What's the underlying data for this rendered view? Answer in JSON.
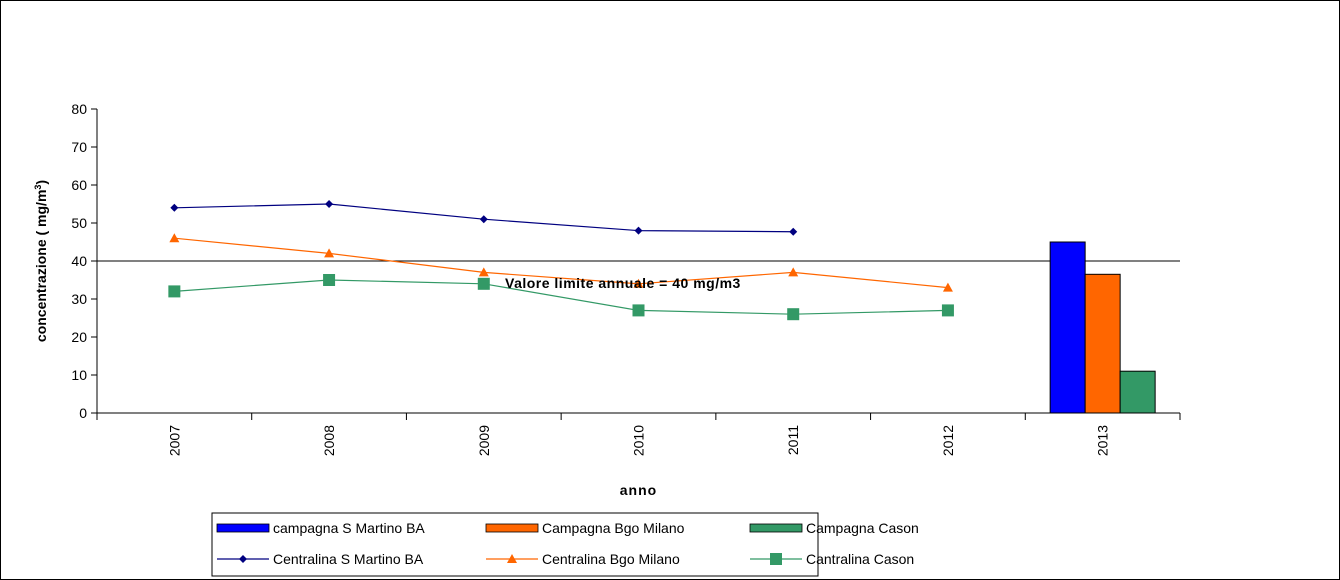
{
  "chart_data": {
    "type": "combo",
    "y_label": [
      "concentrazione ( mg/m",
      "3",
      ")"
    ],
    "x_label": "anno",
    "categories": [
      "2007",
      "2008",
      "2009",
      "2010",
      "2011",
      "2012",
      "2013"
    ],
    "ylim": [
      0,
      80
    ],
    "yticks": [
      0,
      10,
      20,
      30,
      40,
      50,
      60,
      70,
      80
    ],
    "reference_line": {
      "value": 40,
      "label": "Valore limite annuale = 40 mg/m3"
    },
    "series": [
      {
        "name": "campagna S Martino BA",
        "type": "bar",
        "color": "#0000ff",
        "values": [
          null,
          null,
          null,
          null,
          null,
          null,
          45
        ]
      },
      {
        "name": "Campagna Bgo Milano",
        "type": "bar",
        "color": "#ff6600",
        "values": [
          null,
          null,
          null,
          null,
          null,
          null,
          36.5
        ]
      },
      {
        "name": "Campagna Cason",
        "type": "bar",
        "color": "#339966",
        "values": [
          null,
          null,
          null,
          null,
          null,
          null,
          11
        ]
      },
      {
        "name": "Centralina S Martino BA",
        "type": "line",
        "marker": "diamond",
        "color": "#000080",
        "values": [
          54,
          55,
          51,
          48,
          47.7,
          null,
          null
        ]
      },
      {
        "name": "Centralina Bgo Milano",
        "type": "line",
        "marker": "triangle",
        "color": "#ff6600",
        "values": [
          46,
          42,
          37,
          34,
          37,
          33,
          null
        ]
      },
      {
        "name": "Cantralina Cason",
        "type": "line",
        "marker": "square",
        "color": "#339966",
        "values": [
          32,
          35,
          34,
          27,
          26,
          27,
          null
        ]
      }
    ]
  }
}
